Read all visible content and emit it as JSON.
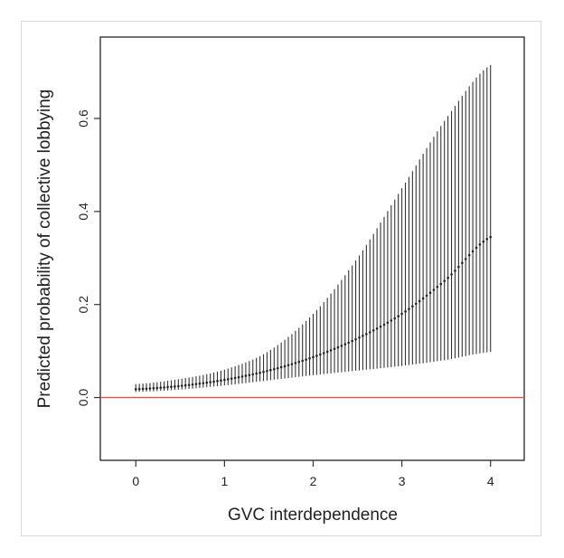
{
  "chart_data": {
    "type": "scatter",
    "title": "",
    "xlabel": "GVC interdependence",
    "ylabel": "Predicted probability of collective lobbying",
    "xlim": [
      -0.4,
      4.38
    ],
    "ylim": [
      -0.135,
      0.775
    ],
    "x_ticks": [
      0,
      1,
      2,
      3,
      4
    ],
    "x_tick_labels": [
      "0",
      "1",
      "2",
      "3",
      "4"
    ],
    "y_ticks": [
      0.0,
      0.2,
      0.4,
      0.6
    ],
    "y_tick_labels": [
      "0.0",
      "0.2",
      "0.4",
      "0.6"
    ],
    "grid": false,
    "reference_line": {
      "y": 0.0,
      "color": "#e0504f"
    },
    "colors": {
      "interval": "#333333",
      "point": "#222222",
      "axis": "#333333"
    },
    "x_range": [
      0,
      4
    ],
    "x_step": 0.04,
    "anchors": {
      "x": [
        0,
        0.5,
        1,
        1.5,
        2,
        2.5,
        3,
        3.5,
        4
      ],
      "y": [
        0.018,
        0.025,
        0.038,
        0.058,
        0.087,
        0.127,
        0.18,
        0.254,
        0.345
      ],
      "lower": [
        0.012,
        0.017,
        0.026,
        0.037,
        0.048,
        0.058,
        0.068,
        0.081,
        0.098
      ],
      "upper": [
        0.029,
        0.04,
        0.06,
        0.1,
        0.18,
        0.3,
        0.45,
        0.6,
        0.715
      ]
    }
  }
}
